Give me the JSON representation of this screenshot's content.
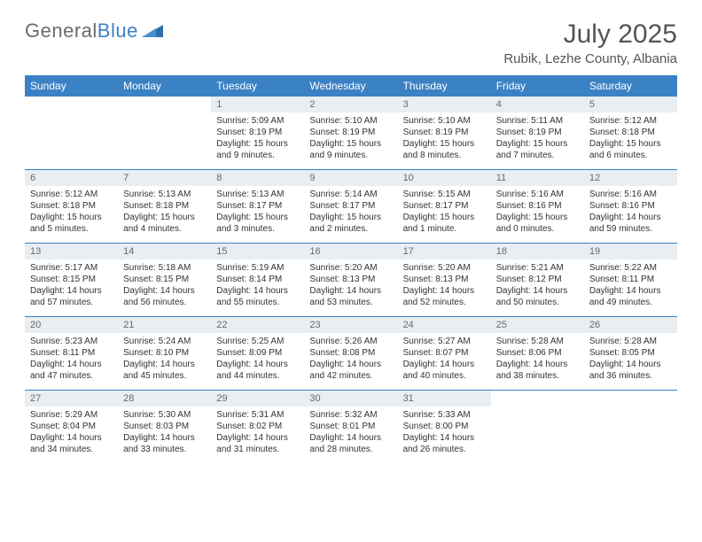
{
  "logo": {
    "text1": "General",
    "text2": "Blue"
  },
  "title": "July 2025",
  "subtitle": "Rubik, Lezhe County, Albania",
  "colors": {
    "header_bg": "#3b82c4",
    "daynum_bg": "#e8eef2",
    "text": "#333333",
    "title_color": "#555555"
  },
  "weekdays": [
    "Sunday",
    "Monday",
    "Tuesday",
    "Wednesday",
    "Thursday",
    "Friday",
    "Saturday"
  ],
  "weeks": [
    [
      null,
      null,
      {
        "n": "1",
        "sunrise": "5:09 AM",
        "sunset": "8:19 PM",
        "day": "15 hours and 9 minutes."
      },
      {
        "n": "2",
        "sunrise": "5:10 AM",
        "sunset": "8:19 PM",
        "day": "15 hours and 9 minutes."
      },
      {
        "n": "3",
        "sunrise": "5:10 AM",
        "sunset": "8:19 PM",
        "day": "15 hours and 8 minutes."
      },
      {
        "n": "4",
        "sunrise": "5:11 AM",
        "sunset": "8:19 PM",
        "day": "15 hours and 7 minutes."
      },
      {
        "n": "5",
        "sunrise": "5:12 AM",
        "sunset": "8:18 PM",
        "day": "15 hours and 6 minutes."
      }
    ],
    [
      {
        "n": "6",
        "sunrise": "5:12 AM",
        "sunset": "8:18 PM",
        "day": "15 hours and 5 minutes."
      },
      {
        "n": "7",
        "sunrise": "5:13 AM",
        "sunset": "8:18 PM",
        "day": "15 hours and 4 minutes."
      },
      {
        "n": "8",
        "sunrise": "5:13 AM",
        "sunset": "8:17 PM",
        "day": "15 hours and 3 minutes."
      },
      {
        "n": "9",
        "sunrise": "5:14 AM",
        "sunset": "8:17 PM",
        "day": "15 hours and 2 minutes."
      },
      {
        "n": "10",
        "sunrise": "5:15 AM",
        "sunset": "8:17 PM",
        "day": "15 hours and 1 minute."
      },
      {
        "n": "11",
        "sunrise": "5:16 AM",
        "sunset": "8:16 PM",
        "day": "15 hours and 0 minutes."
      },
      {
        "n": "12",
        "sunrise": "5:16 AM",
        "sunset": "8:16 PM",
        "day": "14 hours and 59 minutes."
      }
    ],
    [
      {
        "n": "13",
        "sunrise": "5:17 AM",
        "sunset": "8:15 PM",
        "day": "14 hours and 57 minutes."
      },
      {
        "n": "14",
        "sunrise": "5:18 AM",
        "sunset": "8:15 PM",
        "day": "14 hours and 56 minutes."
      },
      {
        "n": "15",
        "sunrise": "5:19 AM",
        "sunset": "8:14 PM",
        "day": "14 hours and 55 minutes."
      },
      {
        "n": "16",
        "sunrise": "5:20 AM",
        "sunset": "8:13 PM",
        "day": "14 hours and 53 minutes."
      },
      {
        "n": "17",
        "sunrise": "5:20 AM",
        "sunset": "8:13 PM",
        "day": "14 hours and 52 minutes."
      },
      {
        "n": "18",
        "sunrise": "5:21 AM",
        "sunset": "8:12 PM",
        "day": "14 hours and 50 minutes."
      },
      {
        "n": "19",
        "sunrise": "5:22 AM",
        "sunset": "8:11 PM",
        "day": "14 hours and 49 minutes."
      }
    ],
    [
      {
        "n": "20",
        "sunrise": "5:23 AM",
        "sunset": "8:11 PM",
        "day": "14 hours and 47 minutes."
      },
      {
        "n": "21",
        "sunrise": "5:24 AM",
        "sunset": "8:10 PM",
        "day": "14 hours and 45 minutes."
      },
      {
        "n": "22",
        "sunrise": "5:25 AM",
        "sunset": "8:09 PM",
        "day": "14 hours and 44 minutes."
      },
      {
        "n": "23",
        "sunrise": "5:26 AM",
        "sunset": "8:08 PM",
        "day": "14 hours and 42 minutes."
      },
      {
        "n": "24",
        "sunrise": "5:27 AM",
        "sunset": "8:07 PM",
        "day": "14 hours and 40 minutes."
      },
      {
        "n": "25",
        "sunrise": "5:28 AM",
        "sunset": "8:06 PM",
        "day": "14 hours and 38 minutes."
      },
      {
        "n": "26",
        "sunrise": "5:28 AM",
        "sunset": "8:05 PM",
        "day": "14 hours and 36 minutes."
      }
    ],
    [
      {
        "n": "27",
        "sunrise": "5:29 AM",
        "sunset": "8:04 PM",
        "day": "14 hours and 34 minutes."
      },
      {
        "n": "28",
        "sunrise": "5:30 AM",
        "sunset": "8:03 PM",
        "day": "14 hours and 33 minutes."
      },
      {
        "n": "29",
        "sunrise": "5:31 AM",
        "sunset": "8:02 PM",
        "day": "14 hours and 31 minutes."
      },
      {
        "n": "30",
        "sunrise": "5:32 AM",
        "sunset": "8:01 PM",
        "day": "14 hours and 28 minutes."
      },
      {
        "n": "31",
        "sunrise": "5:33 AM",
        "sunset": "8:00 PM",
        "day": "14 hours and 26 minutes."
      },
      null,
      null
    ]
  ],
  "labels": {
    "sunrise": "Sunrise:",
    "sunset": "Sunset:",
    "daylight": "Daylight:"
  }
}
